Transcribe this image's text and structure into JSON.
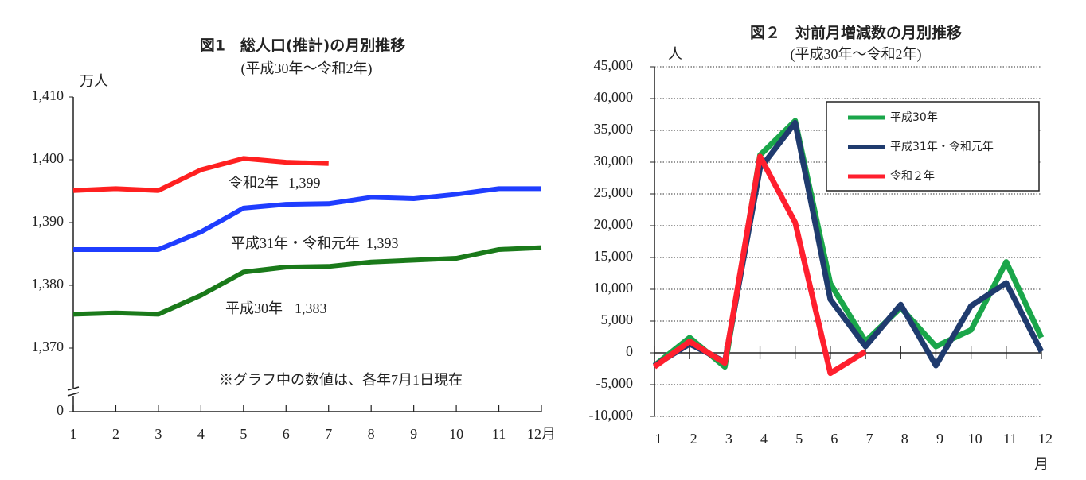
{
  "chart_data": [
    {
      "type": "line",
      "title": "図1　総人口(推計)の月別推移",
      "subtitle": "(平成30年～令和2年)",
      "y_unit": "万人",
      "note": "※グラフ中の数値は、各年7月1日現在",
      "categories": [
        "1",
        "2",
        "3",
        "4",
        "5",
        "6",
        "7",
        "8",
        "9",
        "10",
        "11",
        "12月"
      ],
      "ylim": [
        0,
        1410
      ],
      "axis_break": true,
      "grid": false,
      "yticks": [
        0,
        {
          "value": 1370,
          "label": "1,370"
        },
        {
          "value": 1380,
          "label": "1,380"
        },
        {
          "value": 1390,
          "label": "1,390"
        },
        {
          "value": 1400,
          "label": "1,400"
        },
        {
          "value": 1410,
          "label": "1,410"
        }
      ],
      "series": [
        {
          "name": "平成30年",
          "color": "#1a7a1a",
          "values": [
            1375.4,
            1375.6,
            1375.4,
            1378.4,
            1382.1,
            1382.9,
            1383.0,
            1383.7,
            1384.0,
            1384.3,
            1385.7,
            1386.0
          ],
          "value_labels": [
            null,
            null,
            null,
            null,
            null,
            null,
            "1,383",
            null,
            null,
            null,
            null,
            null
          ]
        },
        {
          "name": "平成31年・令和元年",
          "color": "#1f3dff",
          "values": [
            1385.7,
            1385.7,
            1385.7,
            1388.5,
            1392.3,
            1392.9,
            1393.0,
            1394.0,
            1393.8,
            1394.5,
            1395.4,
            1395.4
          ],
          "value_labels": [
            null,
            null,
            null,
            null,
            null,
            null,
            "1,393",
            null,
            null,
            null,
            null,
            null
          ]
        },
        {
          "name": "令和2年",
          "color": "#ff2020",
          "values": [
            1395.1,
            1395.4,
            1395.1,
            1398.4,
            1400.2,
            1399.6,
            1399.4,
            null,
            null,
            null,
            null,
            null
          ],
          "value_labels": [
            null,
            null,
            null,
            null,
            null,
            null,
            "1,399",
            null,
            null,
            null,
            null,
            null
          ]
        }
      ]
    },
    {
      "type": "line",
      "title": "図２　対前月増減数の月別推移",
      "subtitle": "(平成30年～令和2年)",
      "y_unit": "人",
      "x_unit": "月",
      "categories": [
        "1",
        "2",
        "3",
        "4",
        "5",
        "6",
        "7",
        "8",
        "9",
        "10",
        "11",
        "12"
      ],
      "ylim": [
        -10000,
        45000
      ],
      "grid": true,
      "legend": "upper right",
      "yticks": [
        {
          "value": -10000,
          "label": "-10,000"
        },
        {
          "value": -5000,
          "label": "-5,000"
        },
        0,
        {
          "value": 5000,
          "label": "5,000"
        },
        {
          "value": 10000,
          "label": "10,000"
        },
        {
          "value": 15000,
          "label": "15,000"
        },
        {
          "value": 20000,
          "label": "20,000"
        },
        {
          "value": 25000,
          "label": "25,000"
        },
        {
          "value": 30000,
          "label": "30,000"
        },
        {
          "value": 35000,
          "label": "35,000"
        },
        {
          "value": 40000,
          "label": "40,000"
        },
        {
          "value": 45000,
          "label": "45,000"
        }
      ],
      "series": [
        {
          "name": "平成30年",
          "color": "#1aa64a",
          "values": [
            -2000,
            2400,
            -2200,
            31100,
            36500,
            10900,
            1800,
            7100,
            1000,
            3600,
            14300,
            2400
          ]
        },
        {
          "name": "平成31年・令和元年",
          "color": "#1f3b6e",
          "values": [
            -2000,
            1400,
            -1400,
            29000,
            36200,
            8400,
            1000,
            7600,
            -2000,
            7400,
            11000,
            200
          ]
        },
        {
          "name": "令和２年",
          "color": "#ff1f2e",
          "values": [
            -2200,
            1800,
            -1600,
            30900,
            20500,
            -3200,
            200,
            null,
            null,
            null,
            null,
            null
          ]
        }
      ]
    }
  ]
}
